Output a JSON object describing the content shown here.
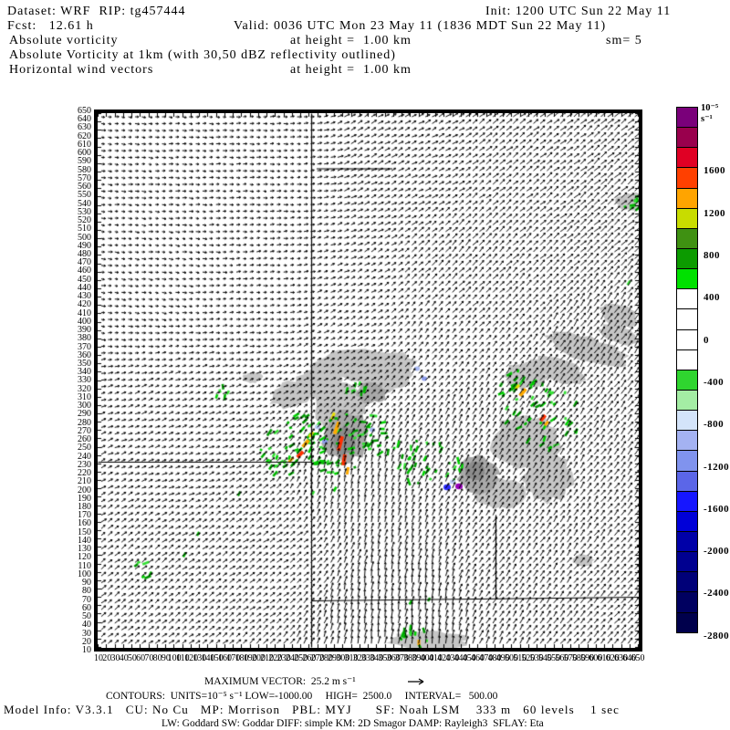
{
  "header": {
    "dataset": "Dataset: WRF  RIP: tg457444",
    "init": "Init: 1200 UTC Sun 22 May 11",
    "fcst": "Fcst:   12.61 h",
    "valid": "Valid: 0036 UTC Mon 23 May 11 (1836 MDT Sun 22 May 11)",
    "field1": "Absolute vorticity",
    "field1_height": "at height =  1.00 km",
    "smooth": "sm= 5",
    "title": "Absolute Vorticity at 1km (with 30,50 dBZ reflectivity outlined)",
    "field2": "Horizontal wind vectors",
    "field2_height": "at height =  1.00 km"
  },
  "footer": {
    "max_vector": "MAXIMUM VECTOR:  25.2 m s⁻¹",
    "contours": "CONTOURS:  UNITS=10⁻⁵ s⁻¹ LOW=-1000.00     HIGH=  2500.0     INTERVAL=   500.00",
    "model_info": "Model Info: V3.3.1   CU: No Cu   MP: Morrison   PBL: MYJ      SF: Noah LSM    333 m   60 levels    1 sec",
    "physics": "LW: Goddard SW: Goddar DIFF: simple KM: 2D Smagor DAMP: Rayleigh3  SFLAY: Eta"
  },
  "colorbar": {
    "units": "10⁻⁵ s⁻¹",
    "cell_h": 23.15,
    "colors": [
      "#7a007a",
      "#99004d",
      "#e00024",
      "#ff4000",
      "#ffa400",
      "#c8dc00",
      "#3f9112",
      "#0c9b00",
      "#00e100",
      "#ffffff",
      "#ffffff",
      "#ffffff",
      "#ffffff",
      "#2fd52f",
      "#a4eda4",
      "#d4e4fa",
      "#a4b2f2",
      "#8093ee",
      "#5b66e8",
      "#1616ff",
      "#0000d8",
      "#0000a8",
      "#000090",
      "#000078",
      "#000060",
      "#00004c"
    ],
    "labels": [
      {
        "text": "1600",
        "b": 3
      },
      {
        "text": "1200",
        "b": 5
      },
      {
        "text": "800",
        "b": 7
      },
      {
        "text": "400",
        "b": 9
      },
      {
        "text": "0",
        "b": 11
      },
      {
        "text": "-400",
        "b": 13
      },
      {
        "text": "-800",
        "b": 15
      },
      {
        "text": "-1200",
        "b": 17
      },
      {
        "text": "-1600",
        "b": 19
      },
      {
        "text": "-2000",
        "b": 21
      },
      {
        "text": "-2400",
        "b": 23
      },
      {
        "text": "-2800",
        "b": 25
      }
    ]
  },
  "axes": {
    "values": [
      10,
      20,
      30,
      40,
      50,
      60,
      70,
      80,
      90,
      100,
      110,
      120,
      130,
      140,
      150,
      160,
      170,
      180,
      190,
      200,
      210,
      220,
      230,
      240,
      250,
      260,
      270,
      280,
      290,
      300,
      310,
      320,
      330,
      340,
      350,
      360,
      370,
      380,
      390,
      400,
      410,
      420,
      430,
      440,
      450,
      460,
      470,
      480,
      490,
      500,
      510,
      520,
      530,
      540,
      550,
      560,
      570,
      580,
      590,
      600,
      610,
      620,
      630,
      640,
      650
    ]
  },
  "chart_data": {
    "type": "heatmap",
    "title": "Absolute Vorticity at 1km (with 30,50 dBZ reflectivity outlined)",
    "subtitle": "Horizontal wind vectors at height = 1.00 km",
    "units": "10⁻⁵ s⁻¹",
    "valid_time": "0036 UTC Mon 23 May 11",
    "init_time": "1200 UTC Sun 22 May 11",
    "forecast_hours": 12.61,
    "max_vector_ms": 25.2,
    "contour_low": -1000.0,
    "contour_high": 2500.0,
    "contour_interval": 500.0,
    "colorbar_top_value": 2200,
    "colorbar_bottom_value": -3000,
    "colorbar_step": 200,
    "x_range": [
      10,
      650
    ],
    "y_range": [
      10,
      650
    ],
    "grid_step": 10,
    "map_lines": [
      {
        "x1": 234,
        "y1": 0,
        "x2": 234,
        "y2": 585
      },
      {
        "x1": 0,
        "y1": 382,
        "x2": 234,
        "y2": 382
      },
      {
        "x1": 234,
        "y1": 534,
        "x2": 592,
        "y2": 530
      },
      {
        "x1": 436,
        "y1": 440,
        "x2": 436,
        "y2": 532
      }
    ],
    "zero_contour": {
      "x1": 240,
      "y1": 61,
      "x2": 323,
      "y2": 61
    },
    "gray_blobs": [
      {
        "cx": 293,
        "cy": 276,
        "rx": 58,
        "ry": 18,
        "rot": 0,
        "c": "#c6c6c6"
      },
      {
        "cx": 243,
        "cy": 293,
        "rx": 26,
        "ry": 16,
        "rot": -10,
        "c": "#c6c6c6"
      },
      {
        "cx": 213,
        "cy": 308,
        "rx": 25,
        "ry": 14,
        "rot": -15,
        "c": "#c6c6c6"
      },
      {
        "cx": 265,
        "cy": 321,
        "rx": 30,
        "ry": 28,
        "rot": 0,
        "c": "#c6c6c6"
      },
      {
        "cx": 313,
        "cy": 286,
        "rx": 30,
        "ry": 22,
        "rot": 0,
        "c": "#c6c6c6"
      },
      {
        "cx": 536,
        "cy": 259,
        "rx": 48,
        "ry": 14,
        "rot": 18,
        "c": "#c6c6c6"
      },
      {
        "cx": 571,
        "cy": 242,
        "rx": 22,
        "ry": 10,
        "rot": 18,
        "c": "#c6c6c6"
      },
      {
        "cx": 505,
        "cy": 281,
        "rx": 30,
        "ry": 13,
        "rot": 20,
        "c": "#c6c6c6"
      },
      {
        "cx": 571,
        "cy": 221,
        "rx": 22,
        "ry": 12,
        "rot": 20,
        "c": "#c6c6c6"
      },
      {
        "cx": 470,
        "cy": 288,
        "rx": 25,
        "ry": 15,
        "rot": 0,
        "c": "#c6c6c6"
      },
      {
        "cx": 470,
        "cy": 360,
        "rx": 38,
        "ry": 30,
        "rot": 0,
        "c": "#c6c6c6"
      },
      {
        "cx": 493,
        "cy": 400,
        "rx": 28,
        "ry": 26,
        "rot": 0,
        "c": "#c6c6c6"
      },
      {
        "cx": 442,
        "cy": 417,
        "rx": 28,
        "ry": 17,
        "rot": 0,
        "c": "#c6c6c6"
      },
      {
        "cx": 532,
        "cy": 490,
        "rx": 12,
        "ry": 7,
        "rot": 0,
        "c": "#c6c6c6"
      },
      {
        "cx": 361,
        "cy": 578,
        "rx": 45,
        "ry": 10,
        "rot": 0,
        "c": "#c6c6c6"
      },
      {
        "cx": 585,
        "cy": 97,
        "rx": 17,
        "ry": 10,
        "rot": 0,
        "c": "#c6c6c6"
      },
      {
        "cx": 170,
        "cy": 290,
        "rx": 11,
        "ry": 6,
        "rot": 0,
        "c": "#c6c6c6"
      },
      {
        "cx": 271,
        "cy": 354,
        "rx": 25,
        "ry": 30,
        "rot": 0,
        "c": "#a9a9a9"
      },
      {
        "cx": 417,
        "cy": 396,
        "rx": 22,
        "ry": 20,
        "rot": 0,
        "c": "#a9a9a9"
      },
      {
        "cx": 300,
        "cy": 306,
        "rx": 16,
        "ry": 12,
        "rot": 0,
        "c": "#a9a9a9"
      },
      {
        "cx": 270,
        "cy": 359,
        "rx": 12,
        "ry": 16,
        "rot": 0,
        "c": "#8c8c8c"
      },
      {
        "cx": 414,
        "cy": 392,
        "rx": 11,
        "ry": 11,
        "rot": 0,
        "c": "#8c8c8c"
      }
    ],
    "green_clusters": [
      {
        "cx": 213,
        "cy": 364,
        "rx": 30,
        "ry": 38,
        "rot": 45,
        "n": 45
      },
      {
        "cx": 274,
        "cy": 361,
        "rx": 32,
        "ry": 46,
        "rot": 70,
        "n": 55
      },
      {
        "cx": 355,
        "cy": 383,
        "rx": 45,
        "ry": 26,
        "rot": 10,
        "n": 35
      },
      {
        "cx": 485,
        "cy": 326,
        "rx": 54,
        "ry": 36,
        "rot": 40,
        "n": 55
      },
      {
        "cx": 590,
        "cy": 101,
        "rx": 10,
        "ry": 14,
        "rot": 60,
        "n": 10
      },
      {
        "cx": 347,
        "cy": 574,
        "rx": 26,
        "ry": 12,
        "rot": 0,
        "n": 14
      },
      {
        "cx": 50,
        "cy": 500,
        "rx": 10,
        "ry": 8,
        "rot": 45,
        "n": 6
      },
      {
        "cx": 134,
        "cy": 306,
        "rx": 9,
        "ry": 7,
        "rot": 0,
        "n": 5
      },
      {
        "cx": 284,
        "cy": 303,
        "rx": 14,
        "ry": 8,
        "rot": 0,
        "n": 8
      }
    ],
    "green_singles": [
      {
        "x": 110,
        "y": 461
      },
      {
        "x": 95,
        "y": 484
      },
      {
        "x": 155,
        "y": 417
      },
      {
        "x": 236,
        "y": 416
      },
      {
        "x": 260,
        "y": 412
      },
      {
        "x": 343,
        "y": 536
      },
      {
        "x": 363,
        "y": 533
      },
      {
        "x": 582,
        "y": 186
      }
    ],
    "cores": [
      {
        "x": 262,
        "y": 345,
        "w": 4,
        "h": 14,
        "rot": 20,
        "c": "#ffaa00"
      },
      {
        "x": 266,
        "y": 362,
        "w": 4,
        "h": 16,
        "rot": 15,
        "c": "#ff3000"
      },
      {
        "x": 258,
        "y": 332,
        "w": 3,
        "h": 8,
        "rot": 20,
        "c": "#e8e000"
      },
      {
        "x": 270,
        "y": 380,
        "w": 4,
        "h": 12,
        "rot": 10,
        "c": "#ff3000"
      },
      {
        "x": 274,
        "y": 392,
        "w": 3,
        "h": 8,
        "rot": 10,
        "c": "#ffaa00"
      },
      {
        "x": 228,
        "y": 362,
        "w": 4,
        "h": 10,
        "rot": 40,
        "c": "#ffaa00"
      },
      {
        "x": 222,
        "y": 374,
        "w": 4,
        "h": 9,
        "rot": 45,
        "c": "#ff3000"
      },
      {
        "x": 234,
        "y": 352,
        "w": 3,
        "h": 7,
        "rot": 40,
        "c": "#e8e000"
      },
      {
        "x": 212,
        "y": 380,
        "w": 3,
        "h": 7,
        "rot": 45,
        "c": "#ffaa00"
      },
      {
        "x": 466,
        "y": 306,
        "w": 4,
        "h": 10,
        "rot": 40,
        "c": "#ffaa00"
      },
      {
        "x": 488,
        "y": 334,
        "w": 4,
        "h": 8,
        "rot": 40,
        "c": "#ff3000"
      },
      {
        "x": 492,
        "y": 340,
        "w": 3,
        "h": 6,
        "rot": 40,
        "c": "#ffaa00"
      },
      {
        "x": 460,
        "y": 300,
        "w": 3,
        "h": 6,
        "rot": 40,
        "c": "#e8e000"
      },
      {
        "x": 352,
        "y": 580,
        "w": 3,
        "h": 6,
        "rot": 0,
        "c": "#ffaa00"
      }
    ],
    "dots": [
      {
        "x": 383,
        "y": 410,
        "r": 4,
        "c": "#2a2aff"
      },
      {
        "x": 396,
        "y": 409,
        "r": 4,
        "c": "#9900bb"
      },
      {
        "x": 350,
        "y": 280,
        "r": 3,
        "c": "#aabbf5"
      },
      {
        "x": 358,
        "y": 291,
        "r": 3,
        "c": "#8f9ff0"
      },
      {
        "x": 249,
        "y": 360,
        "r": 3,
        "c": "#8f9ff0"
      },
      {
        "x": 241,
        "y": 344,
        "r": 3,
        "c": "#bccdf8"
      },
      {
        "x": 301,
        "y": 347,
        "r": 3,
        "c": "#aabbf5"
      },
      {
        "x": 389,
        "y": 404,
        "r": 3,
        "c": "#bccdf8"
      }
    ],
    "green_palette": [
      "#00d200",
      "#00b400",
      "#009600",
      "#32e132"
    ],
    "vector_field": {
      "spacing": 7.4,
      "control_points": [
        {
          "x": 0.08,
          "y": 0.06,
          "a": -5,
          "l": 4
        },
        {
          "x": 0.3,
          "y": 0.1,
          "a": 0,
          "l": 4
        },
        {
          "x": 0.12,
          "y": 0.3,
          "a": -8,
          "l": 4
        },
        {
          "x": 0.3,
          "y": 0.35,
          "a": 5,
          "l": 4
        },
        {
          "x": 0.55,
          "y": 0.08,
          "a": 28,
          "l": 6
        },
        {
          "x": 0.8,
          "y": 0.06,
          "a": 38,
          "l": 7
        },
        {
          "x": 0.97,
          "y": 0.15,
          "a": 42,
          "l": 8
        },
        {
          "x": 0.7,
          "y": 0.3,
          "a": 45,
          "l": 7
        },
        {
          "x": 0.95,
          "y": 0.45,
          "a": 55,
          "l": 8
        },
        {
          "x": 0.45,
          "y": 0.42,
          "a": 30,
          "l": 5
        },
        {
          "x": 0.18,
          "y": 0.6,
          "a": 22,
          "l": 5
        },
        {
          "x": 0.05,
          "y": 0.92,
          "a": 38,
          "l": 6
        },
        {
          "x": 0.3,
          "y": 0.82,
          "a": 35,
          "l": 6
        },
        {
          "x": 0.48,
          "y": 0.7,
          "a": 75,
          "l": 7
        },
        {
          "x": 0.55,
          "y": 0.93,
          "a": 82,
          "l": 8
        },
        {
          "x": 0.68,
          "y": 0.6,
          "a": 60,
          "l": 7
        },
        {
          "x": 0.8,
          "y": 0.85,
          "a": 55,
          "l": 7
        },
        {
          "x": 0.96,
          "y": 0.93,
          "a": 48,
          "l": 7
        },
        {
          "x": 0.62,
          "y": 0.45,
          "a": 50,
          "l": 6
        }
      ]
    }
  }
}
